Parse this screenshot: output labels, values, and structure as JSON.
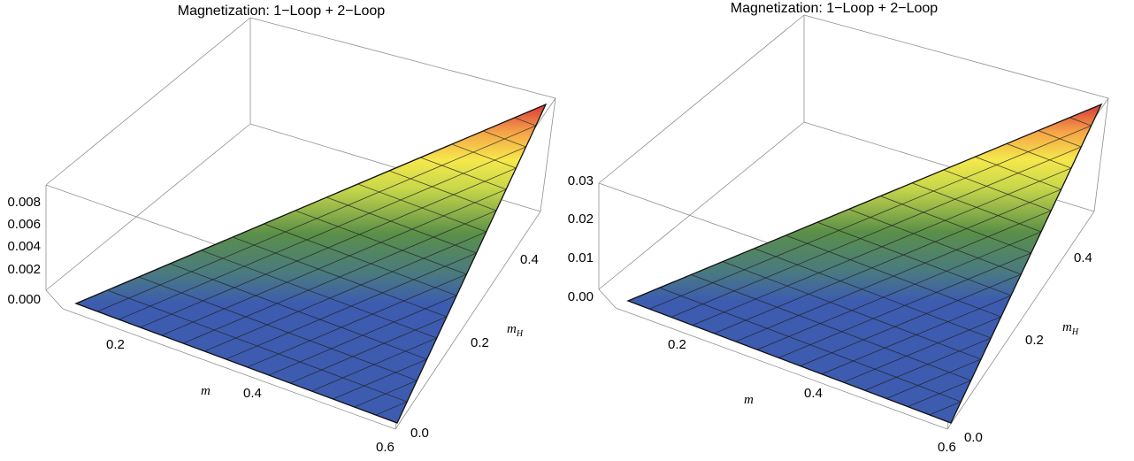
{
  "chart_data": [
    {
      "type": "surface3d",
      "title": "Magnetization: 1−Loop + 2−Loop",
      "xlabel": "m",
      "ylabel_main": "m",
      "ylabel_sub": "H",
      "zlabel": "",
      "x_ticks": [
        "0.2",
        "0.4",
        "0.6"
      ],
      "y_ticks": [
        "0.0",
        "0.2",
        "0.4"
      ],
      "z_ticks": [
        "0.000",
        "0.002",
        "0.004",
        "0.006",
        "0.008"
      ],
      "x_range": [
        0.05,
        0.6
      ],
      "y_range": [
        0.0,
        0.55
      ],
      "z_range": [
        -0.0008,
        0.0095
      ],
      "domain": "m_H <= m (triangular region)",
      "surface": {
        "corner_values": [
          {
            "m": 0.05,
            "m_H": 0.0,
            "z": 0.0
          },
          {
            "m": 0.6,
            "m_H": 0.0,
            "z": 0.0
          },
          {
            "m": 0.6,
            "m_H": 0.55,
            "z": 0.0095
          }
        ]
      },
      "mesh_lines": "15 x 15",
      "colormap": [
        "#3d5cb0",
        "#4a7a80",
        "#5a8f48",
        "#c9d84a",
        "#f5e84c",
        "#f5a447",
        "#d8383a"
      ]
    },
    {
      "type": "surface3d",
      "title": "Magnetization: 1−Loop + 2−Loop",
      "xlabel": "m",
      "ylabel_main": "m",
      "ylabel_sub": "H",
      "zlabel": "",
      "x_ticks": [
        "0.2",
        "0.4",
        "0.6"
      ],
      "y_ticks": [
        "0.0",
        "0.2",
        "0.4"
      ],
      "z_ticks": [
        "0.00",
        "0.01",
        "0.02",
        "0.03"
      ],
      "x_range": [
        0.05,
        0.6
      ],
      "y_range": [
        0.0,
        0.55
      ],
      "z_range": [
        -0.003,
        0.034
      ],
      "domain": "m_H <= m (triangular region)",
      "surface": {
        "corner_values": [
          {
            "m": 0.05,
            "m_H": 0.0,
            "z": 0.0
          },
          {
            "m": 0.6,
            "m_H": 0.0,
            "z": 0.0
          },
          {
            "m": 0.6,
            "m_H": 0.55,
            "z": 0.034
          }
        ]
      },
      "mesh_lines": "15 x 15",
      "colormap": [
        "#3d5cb0",
        "#4a7a80",
        "#5a8f48",
        "#c9d84a",
        "#f5e84c",
        "#f5a447",
        "#d8383a"
      ]
    }
  ]
}
